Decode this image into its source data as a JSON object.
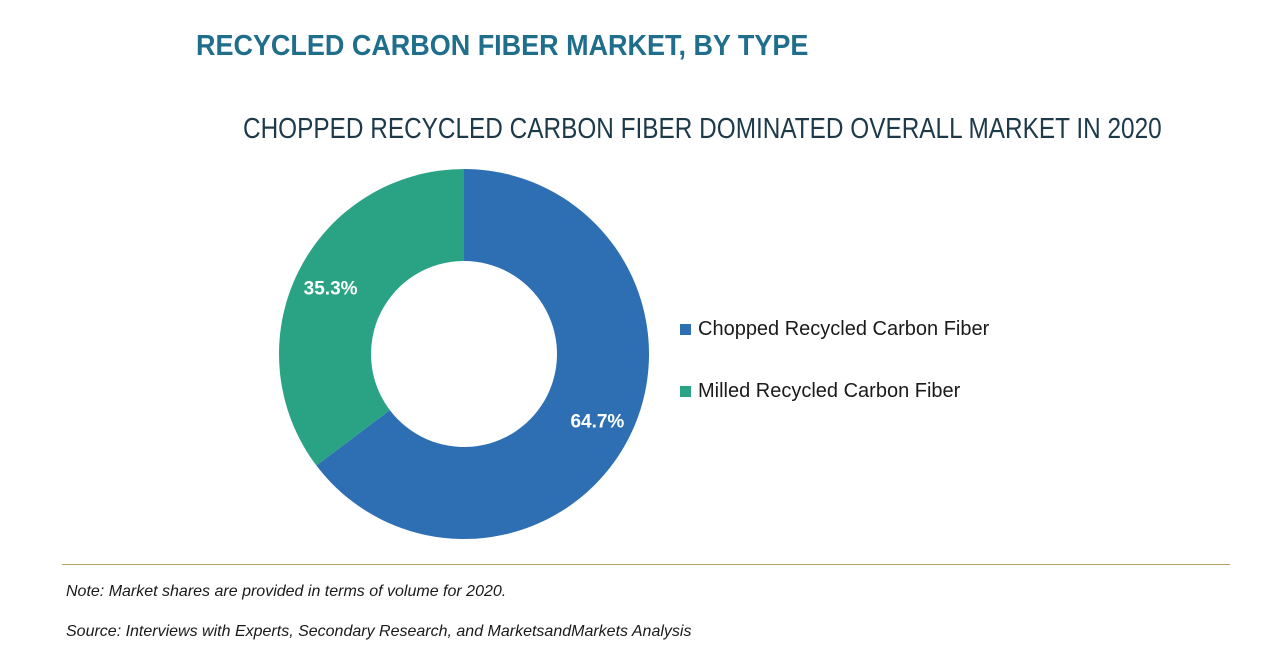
{
  "header": {
    "title": "RECYCLED CARBON FIBER MARKET, BY TYPE",
    "subtitle": "CHOPPED RECYCLED CARBON FIBER DOMINATED OVERALL MARKET IN 2020"
  },
  "chart_data": {
    "type": "pie",
    "style": "donut",
    "title": "CHOPPED RECYCLED CARBON FIBER DOMINATED OVERALL MARKET IN 2020",
    "categories": [
      "Chopped Recycled Carbon Fiber",
      "Milled Recycled Carbon Fiber"
    ],
    "values": [
      64.7,
      35.3
    ],
    "labels": [
      "64.7%",
      "35.3%"
    ],
    "colors": [
      "#2e6fb4",
      "#2aa384"
    ],
    "legend_position": "right"
  },
  "legend": {
    "items": [
      {
        "label": "Chopped Recycled Carbon Fiber",
        "color": "#2e6fb4"
      },
      {
        "label": "Milled Recycled Carbon Fiber",
        "color": "#2aa384"
      }
    ]
  },
  "footer": {
    "note": "Note: Market shares are provided in terms of volume for 2020.",
    "source": "Source: Interviews with Experts, Secondary Research, and MarketsandMarkets Analysis"
  }
}
